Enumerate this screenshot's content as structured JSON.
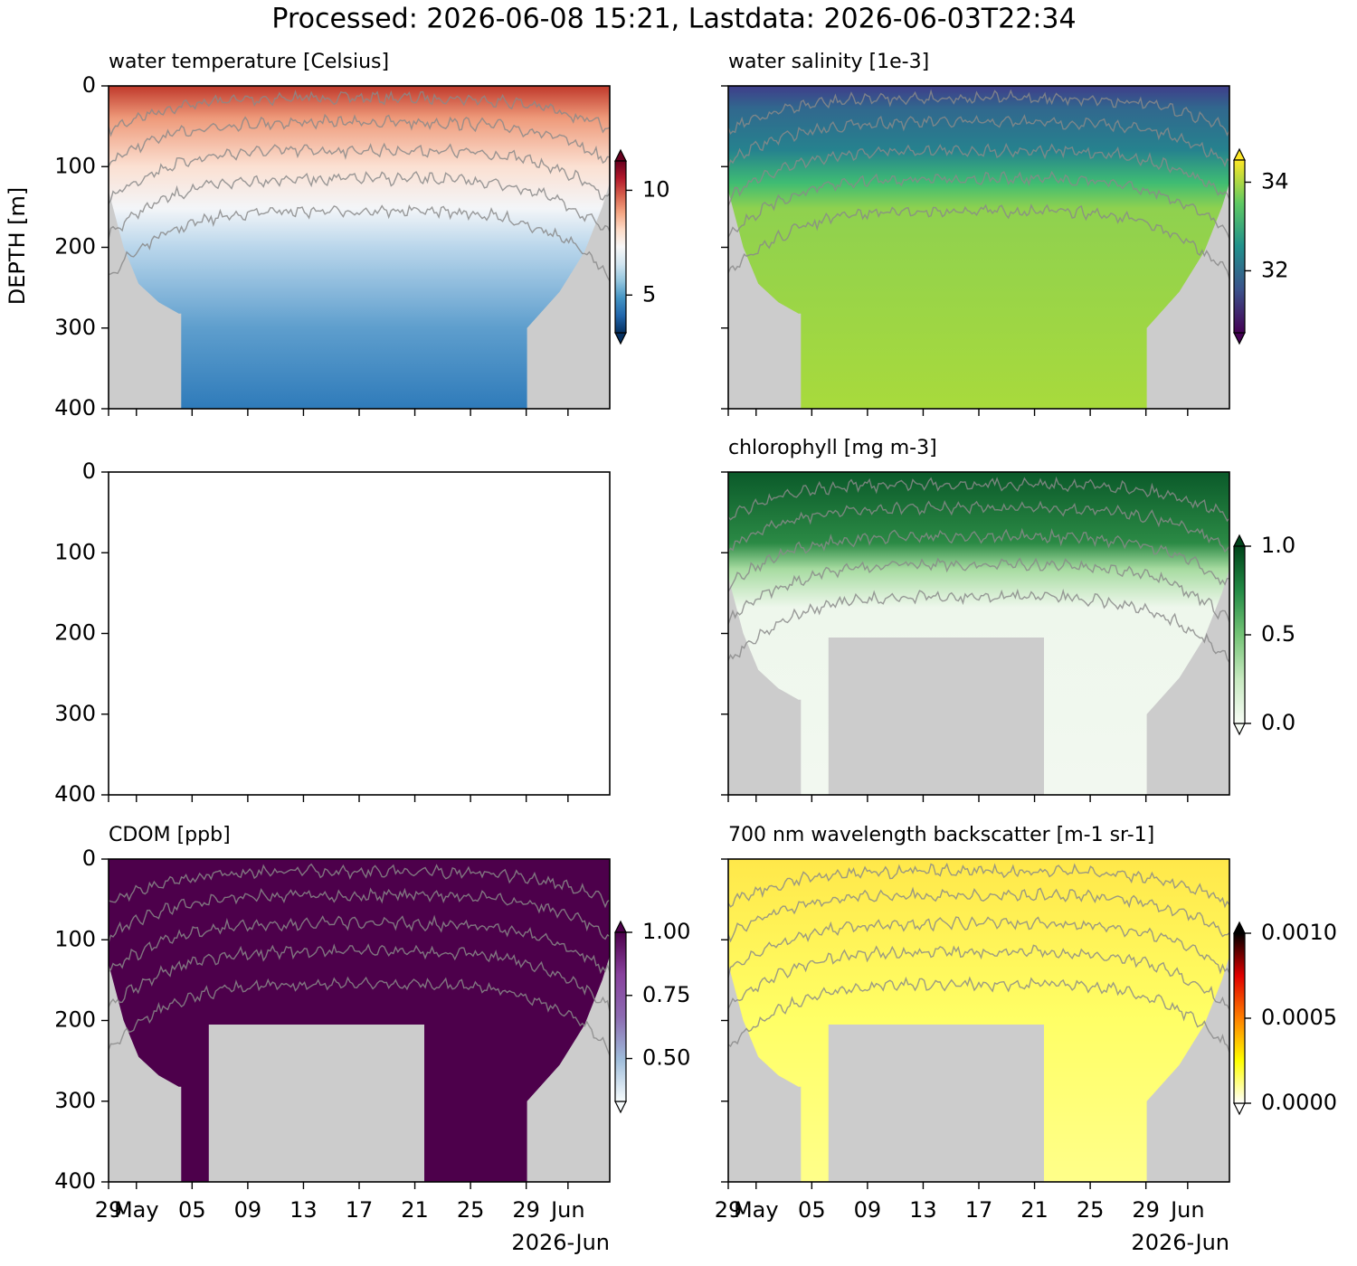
{
  "chart_data": {
    "type": "heatmap-grid",
    "title": "Processed: 2026-06-08 15:21, Lastdata: 2026-06-03T22:34",
    "ylabel": "DEPTH [m]",
    "ylim": [
      400,
      0
    ],
    "yticks": [
      0,
      100,
      200,
      300,
      400
    ],
    "xlim": [
      "2026-04-29",
      "2026-06-04"
    ],
    "xticks": [
      {
        "value": "2026-04-29",
        "label": "29"
      },
      {
        "value": "2026-05-01",
        "label": "May"
      },
      {
        "value": "2026-05-05",
        "label": "05"
      },
      {
        "value": "2026-05-09",
        "label": "09"
      },
      {
        "value": "2026-05-13",
        "label": "13"
      },
      {
        "value": "2026-05-17",
        "label": "17"
      },
      {
        "value": "2026-05-21",
        "label": "21"
      },
      {
        "value": "2026-05-25",
        "label": "25"
      },
      {
        "value": "2026-05-29",
        "label": "29"
      },
      {
        "value": "2026-06-01",
        "label": "Jun"
      }
    ],
    "x_offset_label": "2026-Jun",
    "panels": [
      {
        "type": "heatmap",
        "title": "water temperature [Celsius]",
        "colormap": [
          "#053061",
          "#2166ac",
          "#4393c3",
          "#92c5de",
          "#d1e5f0",
          "#f7f7f7",
          "#fddbc7",
          "#f4a582",
          "#d6604d",
          "#b2182b",
          "#67001f"
        ],
        "clim": [
          3.2,
          11.4
        ],
        "cticks": [
          5,
          10
        ],
        "extend": "both"
      },
      {
        "type": "heatmap",
        "title": "water salinity [1e-3]",
        "colormap": [
          "#440154",
          "#3b528b",
          "#21918c",
          "#5ec962",
          "#fde725"
        ],
        "clim": [
          30.6,
          34.5
        ],
        "cticks": [
          32,
          34
        ],
        "extend": "both"
      },
      {
        "type": "empty"
      },
      {
        "type": "heatmap",
        "title": "chlorophyll [mg m-3]",
        "colormap": [
          "#f7fcf5",
          "#c7e9c0",
          "#74c476",
          "#238b45",
          "#00441b"
        ],
        "clim": [
          0,
          1
        ],
        "cticks": [
          {
            "value": 0,
            "label": "0.0"
          },
          {
            "value": 0.5,
            "label": "0.5"
          },
          {
            "value": 1,
            "label": "1.0"
          }
        ],
        "extend": "both"
      },
      {
        "type": "heatmap",
        "title": "CDOM [ppb]",
        "colormap": [
          "#f7fcfd",
          "#9ebcda",
          "#8c6bb1",
          "#88419d",
          "#4d004b"
        ],
        "clim": [
          0.33,
          1.0
        ],
        "cticks": [
          {
            "value": 1,
            "label": "1.00"
          },
          {
            "value": 0.75,
            "label": "0.75"
          },
          {
            "value": 0.5,
            "label": "0.50"
          }
        ],
        "extend": "both"
      },
      {
        "type": "heatmap",
        "title": "700 nm wavelength backscatter [m-1 sr-1]",
        "colormap": [
          "#ffffff",
          "#ffff00",
          "#ff8000",
          "#e00000",
          "#000000"
        ],
        "clim": [
          0,
          0.001
        ],
        "cticks": [
          {
            "value": 0,
            "label": "0.0000"
          },
          {
            "value": 0.0005,
            "label": "0.0005"
          },
          {
            "value": 0.001,
            "label": "0.0010"
          }
        ],
        "extend": "both"
      }
    ]
  }
}
